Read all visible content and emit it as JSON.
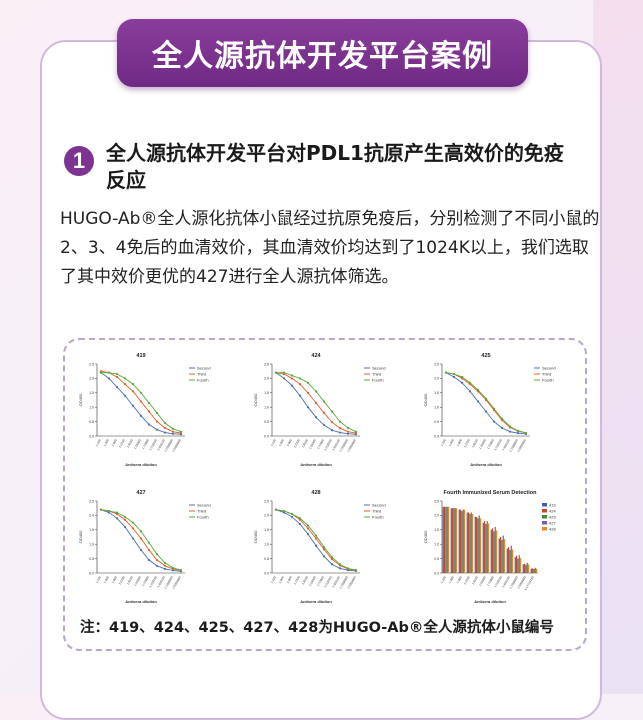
{
  "banner": {
    "title": "全人源抗体开发平台案例"
  },
  "section": {
    "number": "1",
    "title": "全人源抗体开发平台对PDL1抗原产生高效价的免疫反应",
    "body": "HUGO-Ab®全人源化抗体小鼠经过抗原免疫后，分别检测了不同小鼠的2、3、4免后的血清效价，其血清效价均达到了1024K以上，我们选取了其中效价更优的427进行全人源抗体筛选。"
  },
  "note": "注：419、424、425、427、428为HUGO-Ab®全人源抗体小鼠编号",
  "colors": {
    "second": "#4a6fb5",
    "third": "#e0602a",
    "fourth": "#5aa83c",
    "m419": "#3c5ea8",
    "m424": "#c8452c",
    "m425": "#3e8d3a",
    "m427": "#7b5aa6",
    "m428": "#e08a2c"
  },
  "chart_data": [
    {
      "type": "line",
      "title": "419",
      "xlabel": "Antisera dilution",
      "ylabel": "OD450",
      "categories": [
        "1:100",
        "1:300",
        "1:900",
        "1:2700",
        "1:8100",
        "1:24300",
        "1:72900",
        "1:218700",
        "1:656100",
        "1:1968300",
        "1:5904900"
      ],
      "series": [
        {
          "name": "Second",
          "values": [
            2.2,
            2.0,
            1.7,
            1.4,
            1.05,
            0.7,
            0.4,
            0.22,
            0.12,
            0.08,
            0.06
          ]
        },
        {
          "name": "Third",
          "values": [
            2.25,
            2.2,
            2.05,
            1.8,
            1.55,
            1.2,
            0.85,
            0.5,
            0.28,
            0.15,
            0.1
          ]
        },
        {
          "name": "Fourth",
          "values": [
            2.2,
            2.2,
            2.15,
            2.0,
            1.8,
            1.5,
            1.15,
            0.8,
            0.45,
            0.25,
            0.15
          ]
        }
      ]
    },
    {
      "type": "line",
      "title": "424",
      "xlabel": "Antisera dilution",
      "ylabel": "OD450",
      "categories": [
        "1:100",
        "1:300",
        "1:900",
        "1:2700",
        "1:8100",
        "1:24300",
        "1:72900",
        "1:218700",
        "1:656100",
        "1:1968300",
        "1:5904900"
      ],
      "series": [
        {
          "name": "Second",
          "values": [
            2.2,
            2.0,
            1.75,
            1.4,
            1.0,
            0.65,
            0.38,
            0.2,
            0.12,
            0.08,
            0.06
          ]
        },
        {
          "name": "Third",
          "values": [
            2.2,
            2.15,
            2.0,
            1.8,
            1.5,
            1.15,
            0.8,
            0.48,
            0.27,
            0.15,
            0.1
          ]
        },
        {
          "name": "Fourth",
          "values": [
            2.2,
            2.2,
            2.1,
            2.0,
            1.85,
            1.55,
            1.2,
            0.85,
            0.5,
            0.28,
            0.15
          ]
        }
      ]
    },
    {
      "type": "line",
      "title": "425",
      "xlabel": "Antisera dilution",
      "ylabel": "OD450",
      "categories": [
        "1:100",
        "1:300",
        "1:900",
        "1:2700",
        "1:8100",
        "1:24300",
        "1:72900",
        "1:218700",
        "1:656100",
        "1:1968300",
        "1:5904900"
      ],
      "series": [
        {
          "name": "Second",
          "values": [
            2.2,
            2.05,
            1.85,
            1.55,
            1.2,
            0.85,
            0.5,
            0.28,
            0.15,
            0.1,
            0.07
          ]
        },
        {
          "name": "Third",
          "values": [
            2.2,
            2.15,
            2.0,
            1.8,
            1.55,
            1.25,
            0.9,
            0.55,
            0.3,
            0.17,
            0.1
          ]
        },
        {
          "name": "Fourth",
          "values": [
            2.2,
            2.15,
            2.05,
            1.85,
            1.6,
            1.3,
            0.95,
            0.6,
            0.33,
            0.18,
            0.11
          ]
        }
      ]
    },
    {
      "type": "line",
      "title": "427",
      "xlabel": "Antisera dilution",
      "ylabel": "OD450",
      "categories": [
        "1:100",
        "1:300",
        "1:900",
        "1:2700",
        "1:8100",
        "1:24300",
        "1:72900",
        "1:218700",
        "1:656100",
        "1:1968300",
        "1:5904900"
      ],
      "series": [
        {
          "name": "Second",
          "values": [
            2.2,
            2.1,
            1.9,
            1.6,
            1.2,
            0.8,
            0.45,
            0.25,
            0.14,
            0.09,
            0.06
          ]
        },
        {
          "name": "Third",
          "values": [
            2.2,
            2.15,
            2.05,
            1.85,
            1.55,
            1.2,
            0.8,
            0.45,
            0.25,
            0.14,
            0.09
          ]
        },
        {
          "name": "Fourth",
          "values": [
            2.2,
            2.15,
            2.1,
            1.95,
            1.75,
            1.45,
            1.05,
            0.65,
            0.35,
            0.18,
            0.1
          ]
        }
      ]
    },
    {
      "type": "line",
      "title": "428",
      "xlabel": "Antisera dilution",
      "ylabel": "OD450",
      "categories": [
        "1:100",
        "1:300",
        "1:900",
        "1:2700",
        "1:8100",
        "1:24300",
        "1:72900",
        "1:218700",
        "1:656100",
        "1:1968300",
        "1:5904900"
      ],
      "series": [
        {
          "name": "Second",
          "values": [
            2.2,
            2.1,
            1.95,
            1.7,
            1.35,
            0.95,
            0.58,
            0.3,
            0.16,
            0.1,
            0.07
          ]
        },
        {
          "name": "Third",
          "values": [
            2.2,
            2.15,
            2.05,
            1.85,
            1.55,
            1.2,
            0.82,
            0.48,
            0.26,
            0.14,
            0.09
          ]
        },
        {
          "name": "Fourth",
          "values": [
            2.2,
            2.15,
            2.05,
            1.9,
            1.65,
            1.3,
            0.9,
            0.55,
            0.3,
            0.16,
            0.1
          ]
        }
      ]
    },
    {
      "type": "bar",
      "title": "Fourth Immunized Serum Detection",
      "xlabel": "Antisera dilution",
      "ylabel": "OD450",
      "categories": [
        "1:100",
        "1:300",
        "1:900",
        "1:2700",
        "1:8100",
        "1:24300",
        "1:72900",
        "1:218700",
        "1:656100",
        "1:1968300",
        "1:5904900",
        "1:17714700"
      ],
      "series": [
        {
          "name": "419",
          "values": [
            2.3,
            2.25,
            2.2,
            2.1,
            1.95,
            1.75,
            1.5,
            1.2,
            0.85,
            0.55,
            0.3,
            0.15
          ]
        },
        {
          "name": "424",
          "values": [
            2.3,
            2.25,
            2.2,
            2.1,
            1.95,
            1.8,
            1.55,
            1.25,
            0.9,
            0.6,
            0.32,
            0.16
          ]
        },
        {
          "name": "425",
          "values": [
            2.3,
            2.25,
            2.15,
            2.05,
            1.9,
            1.7,
            1.45,
            1.15,
            0.8,
            0.5,
            0.28,
            0.14
          ]
        },
        {
          "name": "427",
          "values": [
            2.3,
            2.25,
            2.2,
            2.1,
            2.0,
            1.8,
            1.6,
            1.3,
            0.95,
            0.62,
            0.35,
            0.18
          ]
        },
        {
          "name": "428",
          "values": [
            2.3,
            2.25,
            2.2,
            2.05,
            1.9,
            1.72,
            1.48,
            1.18,
            0.82,
            0.52,
            0.3,
            0.15
          ]
        }
      ]
    }
  ]
}
